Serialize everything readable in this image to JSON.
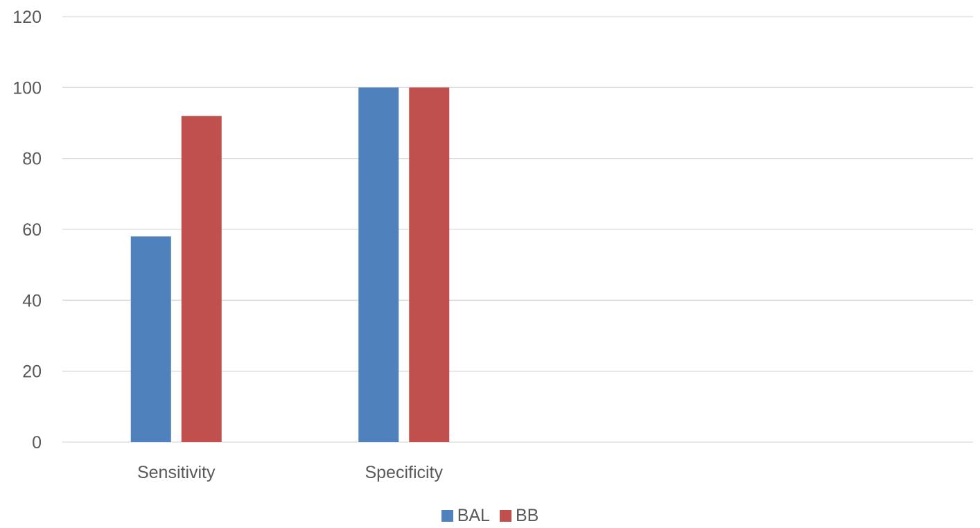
{
  "chart_data": {
    "type": "bar",
    "categories": [
      "Sensitivity",
      "Specificity",
      "",
      ""
    ],
    "series": [
      {
        "name": "BAL",
        "values": [
          58,
          100,
          null,
          null
        ],
        "color": "#4f81bd"
      },
      {
        "name": "BB",
        "values": [
          92,
          100,
          null,
          null
        ],
        "color": "#c0504d"
      }
    ],
    "title": "",
    "xlabel": "",
    "ylabel": "",
    "ylim": [
      0,
      120
    ],
    "yticks": [
      "0",
      "20",
      "40",
      "60",
      "80",
      "100",
      "120"
    ],
    "grid": true,
    "legend_position": "bottom"
  }
}
